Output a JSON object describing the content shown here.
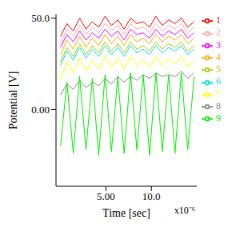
{
  "chart_data": {
    "type": "line",
    "x_label": "Time [sec]",
    "y_label": "Potential [V]",
    "annotation": "x10⁻⁶",
    "legend": "right",
    "x": [
      0,
      0.7,
      1.4,
      2.1,
      2.8,
      3.5,
      4.2,
      4.9,
      5.6,
      6.3,
      7,
      7.7,
      8.4,
      9.1,
      9.8,
      10.5,
      11.2,
      11.9,
      12.6,
      13.3,
      14,
      14.7
    ],
    "xlim": [
      -0.5,
      15
    ],
    "xticks": [
      {
        "value": 5,
        "label": "5.00"
      },
      {
        "value": 10,
        "label": "10.0"
      }
    ],
    "ylim": [
      -42,
      52
    ],
    "yticks": [
      {
        "value": 0,
        "label": "0.00"
      },
      {
        "value": 50,
        "label": "50.0"
      }
    ],
    "series": [
      {
        "name": "1",
        "color": "#ff0000",
        "values": [
          40,
          47,
          43,
          50,
          44,
          48,
          45,
          51,
          46,
          49,
          44,
          50,
          47,
          48,
          45,
          51,
          46,
          49,
          47,
          50,
          45,
          48
        ]
      },
      {
        "name": "2",
        "color": "#ffaaaa",
        "values": [
          36,
          44,
          40,
          46,
          41,
          45,
          42,
          47,
          43,
          46,
          41,
          47,
          44,
          45,
          42,
          47,
          43,
          46,
          44,
          47,
          42,
          45
        ]
      },
      {
        "name": "3",
        "color": "#ff00ff",
        "values": [
          34,
          41,
          37,
          43,
          38,
          42,
          39,
          44,
          40,
          43,
          38,
          44,
          41,
          42,
          39,
          44,
          40,
          43,
          41,
          44,
          39,
          42
        ]
      },
      {
        "name": "4",
        "color": "#ffaa00",
        "values": [
          30,
          38,
          33,
          40,
          34,
          39,
          35,
          41,
          36,
          40,
          35,
          41,
          37,
          39,
          36,
          41,
          37,
          40,
          38,
          41,
          36,
          39
        ]
      },
      {
        "name": "5",
        "color": "#aacc00",
        "values": [
          26,
          34,
          29,
          36,
          30,
          35,
          31,
          37,
          32,
          36,
          31,
          37,
          33,
          35,
          32,
          37,
          33,
          36,
          34,
          37,
          32,
          35
        ]
      },
      {
        "name": "6",
        "color": "#00e0e0",
        "values": [
          24,
          32,
          27,
          34,
          28,
          33,
          29,
          35,
          30,
          34,
          29,
          35,
          31,
          33,
          30,
          35,
          31,
          34,
          32,
          35,
          30,
          33
        ]
      },
      {
        "name": "7",
        "color": "#ffff00",
        "values": [
          16,
          26,
          20,
          28,
          21,
          27,
          22,
          29,
          23,
          28,
          22,
          29,
          24,
          27,
          23,
          29,
          24,
          28,
          25,
          29,
          23,
          27
        ]
      },
      {
        "name": "8",
        "color": "#888888",
        "values": [
          8,
          14,
          11,
          16,
          12,
          15,
          13,
          17,
          14,
          18,
          15,
          18,
          16,
          19,
          17,
          20,
          18,
          19,
          18,
          21,
          17,
          20
        ]
      },
      {
        "name": "9",
        "color": "#00ee00",
        "values": [
          -20,
          15,
          -24,
          18,
          -22,
          17,
          -25,
          19,
          -23,
          18,
          -24,
          20,
          -22,
          19,
          -25,
          20,
          -23,
          19,
          -24,
          20,
          -22,
          18
        ]
      }
    ]
  }
}
